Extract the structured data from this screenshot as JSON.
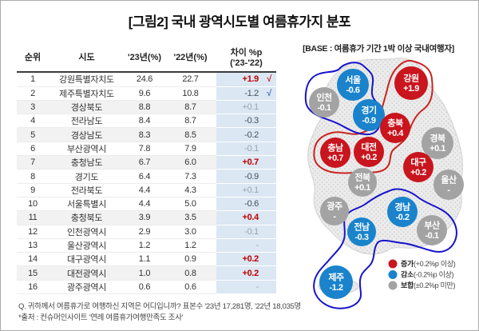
{
  "title": "[그림2] 국내 광역시도별 여름휴가지 분포",
  "base_note": "[BASE : 여름휴가 기간 1박 이상 국내여행자]",
  "table": {
    "headers": {
      "rank": "순위",
      "region": "시도",
      "y23": "'23년(%)",
      "y22": "'22년(%)",
      "diff_line1": "차이 %p",
      "diff_line2": "('23-'22)"
    },
    "rows": [
      {
        "rank": "1",
        "region": "강원특별자치도",
        "y23": "24.6",
        "y22": "22.7",
        "diff": "+1.9",
        "diff_style": "up",
        "check": "red",
        "shaded": false
      },
      {
        "rank": "2",
        "region": "제주특별자치도",
        "y23": "9.6",
        "y22": "10.8",
        "diff": "-1.2",
        "diff_style": "down",
        "check": "blue",
        "shaded": false
      },
      {
        "rank": "3",
        "region": "경상북도",
        "y23": "8.8",
        "y22": "8.7",
        "diff": "+0.1",
        "diff_style": "flat",
        "check": "",
        "shaded": true
      },
      {
        "rank": "4",
        "region": "전라남도",
        "y23": "8.4",
        "y22": "8.7",
        "diff": "-0.3",
        "diff_style": "down",
        "check": "",
        "shaded": false
      },
      {
        "rank": "5",
        "region": "경상남도",
        "y23": "8.3",
        "y22": "8.5",
        "diff": "-0.2",
        "diff_style": "down",
        "check": "",
        "shaded": true
      },
      {
        "rank": "6",
        "region": "부산광역시",
        "y23": "7.8",
        "y22": "7.9",
        "diff": "-0.1",
        "diff_style": "flat",
        "check": "",
        "shaded": false
      },
      {
        "rank": "7",
        "region": "충청남도",
        "y23": "6.7",
        "y22": "6.0",
        "diff": "+0.7",
        "diff_style": "up",
        "check": "",
        "shaded": true
      },
      {
        "rank": "8",
        "region": "경기도",
        "y23": "6.4",
        "y22": "7.3",
        "diff": "-0.9",
        "diff_style": "down",
        "check": "",
        "shaded": false
      },
      {
        "rank": "9",
        "region": "전라북도",
        "y23": "4.4",
        "y22": "4.3",
        "diff": "+0.1",
        "diff_style": "flat",
        "check": "",
        "shaded": false
      },
      {
        "rank": "10",
        "region": "서울특별시",
        "y23": "4.4",
        "y22": "5.0",
        "diff": "-0.6",
        "diff_style": "down",
        "check": "",
        "shaded": false
      },
      {
        "rank": "11",
        "region": "충청북도",
        "y23": "3.9",
        "y22": "3.5",
        "diff": "+0.4",
        "diff_style": "up",
        "check": "",
        "shaded": true
      },
      {
        "rank": "12",
        "region": "인천광역시",
        "y23": "2.9",
        "y22": "3.0",
        "diff": "-0.1",
        "diff_style": "flat",
        "check": "",
        "shaded": false
      },
      {
        "rank": "13",
        "region": "울산광역시",
        "y23": "1.2",
        "y22": "1.2",
        "diff": "-",
        "diff_style": "flat",
        "check": "",
        "shaded": false
      },
      {
        "rank": "14",
        "region": "대구광역시",
        "y23": "1.1",
        "y22": "0.9",
        "diff": "+0.2",
        "diff_style": "up",
        "check": "",
        "shaded": false
      },
      {
        "rank": "15",
        "region": "대전광역시",
        "y23": "1.0",
        "y22": "0.8",
        "diff": "+0.2",
        "diff_style": "up",
        "check": "",
        "shaded": true
      },
      {
        "rank": "16",
        "region": "광주광역시",
        "y23": "0.6",
        "y22": "0.6",
        "diff": "-",
        "diff_style": "flat",
        "check": "",
        "shaded": false
      }
    ]
  },
  "map": {
    "regions": [
      {
        "name": "서울",
        "value": "-0.6",
        "type": "down"
      },
      {
        "name": "인천",
        "value": "-0.1",
        "type": "flat"
      },
      {
        "name": "경기",
        "value": "-0.9",
        "type": "down"
      },
      {
        "name": "강원",
        "value": "+1.9",
        "type": "up"
      },
      {
        "name": "충북",
        "value": "+0.4",
        "type": "up"
      },
      {
        "name": "경북",
        "value": "+0.1",
        "type": "flat"
      },
      {
        "name": "충남",
        "value": "+0.7",
        "type": "up"
      },
      {
        "name": "대전",
        "value": "+0.2",
        "type": "up"
      },
      {
        "name": "대구",
        "value": "+0.2",
        "type": "up"
      },
      {
        "name": "전북",
        "value": "+0.1",
        "type": "flat"
      },
      {
        "name": "울산",
        "value": "-",
        "type": "flat"
      },
      {
        "name": "광주",
        "value": "-",
        "type": "flat"
      },
      {
        "name": "경남",
        "value": "-0.2",
        "type": "down"
      },
      {
        "name": "부산",
        "value": "-0.1",
        "type": "flat"
      },
      {
        "name": "전남",
        "value": "-0.3",
        "type": "down"
      },
      {
        "name": "제주",
        "value": "-1.2",
        "type": "down"
      }
    ],
    "legend": [
      {
        "label": "증가",
        "detail": "(+0.2%p 이상)",
        "type": "up"
      },
      {
        "label": "감소",
        "detail": "(-0.2%p 이상)",
        "type": "down"
      },
      {
        "label": "보합",
        "detail": "(±0.2%p 미만)",
        "type": "flat"
      }
    ]
  },
  "colors": {
    "up": "#c9151e",
    "down": "#1a83cc",
    "flat": "#a3a3a3",
    "outline_red": "#c9241f",
    "outline_blue": "#1713c9",
    "diff_bg": "#dbe7f3"
  },
  "footer": {
    "line1": "Q. 귀하께서 여름휴가로 여행하신 지역은 어디입니까? 표본수 '23년 17,281명, '22년 18,035명",
    "line2": "*출처 : 컨슈머인사이트 '연례 여름휴가여행만족도 조사'"
  },
  "chart_data": {
    "type": "table",
    "title": "[그림2] 국내 광역시도별 여름휴가지 분포",
    "subtitle": "[BASE : 여름휴가 기간 1박 이상 국내여행자]",
    "columns": [
      "순위",
      "시도",
      "'23년(%)",
      "'22년(%)",
      "차이 %p ('23-'22)"
    ],
    "rows": [
      [
        1,
        "강원특별자치도",
        24.6,
        22.7,
        1.9
      ],
      [
        2,
        "제주특별자치도",
        9.6,
        10.8,
        -1.2
      ],
      [
        3,
        "경상북도",
        8.8,
        8.7,
        0.1
      ],
      [
        4,
        "전라남도",
        8.4,
        8.7,
        -0.3
      ],
      [
        5,
        "경상남도",
        8.3,
        8.5,
        -0.2
      ],
      [
        6,
        "부산광역시",
        7.8,
        7.9,
        -0.1
      ],
      [
        7,
        "충청남도",
        6.7,
        6.0,
        0.7
      ],
      [
        8,
        "경기도",
        6.4,
        7.3,
        -0.9
      ],
      [
        9,
        "전라북도",
        4.4,
        4.3,
        0.1
      ],
      [
        10,
        "서울특별시",
        4.4,
        5.0,
        -0.6
      ],
      [
        11,
        "충청북도",
        3.9,
        3.5,
        0.4
      ],
      [
        12,
        "인천광역시",
        2.9,
        3.0,
        -0.1
      ],
      [
        13,
        "울산광역시",
        1.2,
        1.2,
        0.0
      ],
      [
        14,
        "대구광역시",
        1.1,
        0.9,
        0.2
      ],
      [
        15,
        "대전광역시",
        1.0,
        0.8,
        0.2
      ],
      [
        16,
        "광주광역시",
        0.6,
        0.6,
        0.0
      ]
    ],
    "legend": [
      "증가(+0.2%p 이상)",
      "감소(-0.2%p 이상)",
      "보합(±0.2%p 미만)"
    ],
    "legend_position": "bottom-right of map"
  }
}
